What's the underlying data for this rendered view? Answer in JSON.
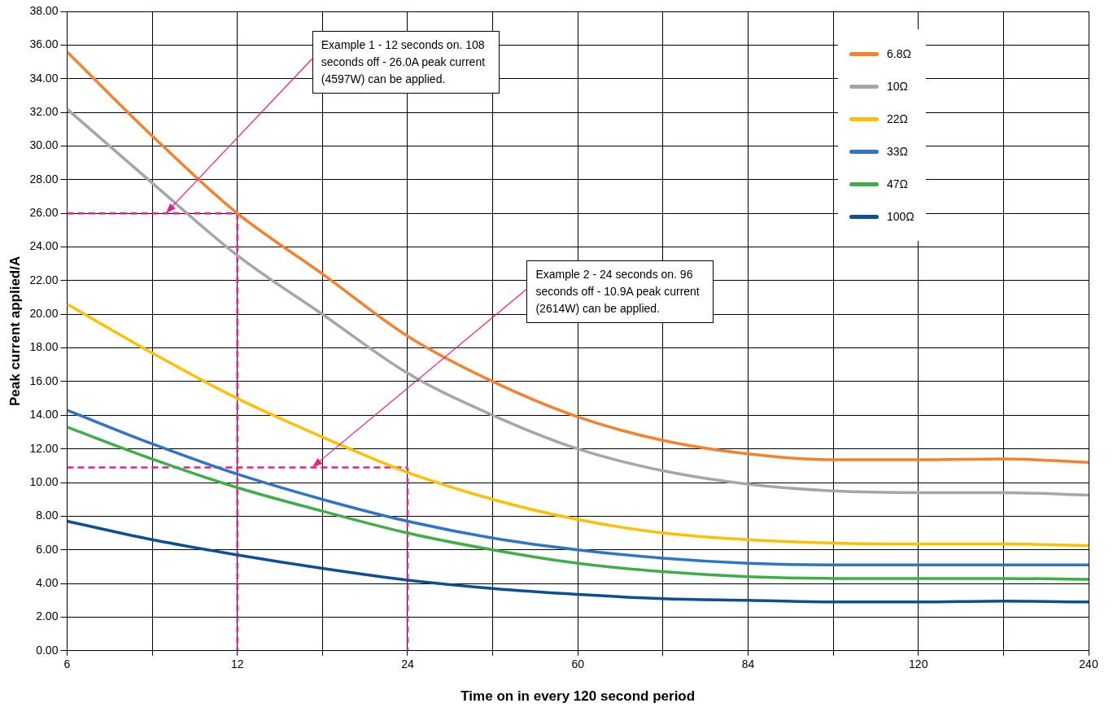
{
  "chart_data": {
    "type": "line",
    "xlabel": "Time on in every 120 second period",
    "ylabel": "Peak current applied/A",
    "categories": [
      "6",
      null,
      "12",
      null,
      "24",
      null,
      "60",
      null,
      "84",
      null,
      "120",
      null,
      "240"
    ],
    "series": [
      {
        "name": "6.8Ω",
        "color": "#f5822a",
        "values": [
          35.6,
          30.6,
          26.0,
          22.4,
          18.7,
          16.0,
          13.9,
          12.5,
          11.7,
          11.35,
          11.35,
          11.4,
          11.2
        ]
      },
      {
        "name": "10Ω",
        "color": "#a6a6a6",
        "values": [
          32.2,
          27.8,
          23.5,
          20.0,
          16.5,
          14.0,
          12.0,
          10.7,
          9.9,
          9.5,
          9.4,
          9.4,
          9.25
        ]
      },
      {
        "name": "22Ω",
        "color": "#ffc000",
        "values": [
          20.6,
          17.7,
          15.0,
          12.7,
          10.6,
          9.0,
          7.8,
          7.0,
          6.6,
          6.4,
          6.35,
          6.35,
          6.25
        ]
      },
      {
        "name": "33Ω",
        "color": "#2e75c8",
        "values": [
          14.3,
          12.3,
          10.5,
          9.0,
          7.7,
          6.7,
          6.0,
          5.5,
          5.2,
          5.1,
          5.1,
          5.1,
          5.1
        ]
      },
      {
        "name": "47Ω",
        "color": "#3fae49",
        "values": [
          13.3,
          11.4,
          9.7,
          8.3,
          7.0,
          6.0,
          5.2,
          4.7,
          4.4,
          4.3,
          4.3,
          4.3,
          4.25
        ]
      },
      {
        "name": "100Ω",
        "color": "#0b4f94",
        "values": [
          7.7,
          6.6,
          5.7,
          4.9,
          4.2,
          3.7,
          3.35,
          3.1,
          3.0,
          2.9,
          2.9,
          2.95,
          2.9
        ]
      },
      {
        "color": "#ec1c8c",
        "line_style": "dashed",
        "x": [
          "6",
          "12"
        ],
        "values": [
          26,
          26
        ]
      },
      {
        "color": "#ec1c8c",
        "line_style": "dashed",
        "x": [
          "12",
          "12"
        ],
        "values": [
          26,
          0
        ]
      },
      {
        "color": "#ec1c8c",
        "line_style": "dashed",
        "x": [
          "6",
          "24"
        ],
        "values": [
          10.9,
          10.9
        ]
      },
      {
        "color": "#ec1c8c",
        "line_style": "dashed",
        "x": [
          "24",
          "24"
        ],
        "values": [
          10.9,
          0
        ]
      }
    ],
    "ylim": [
      0,
      38
    ],
    "yticks": [
      {
        "value": 0,
        "label": "0.00"
      },
      {
        "value": 2,
        "label": "2.00"
      },
      {
        "value": 4,
        "label": "4.00"
      },
      {
        "value": 6,
        "label": "6.00"
      },
      {
        "value": 8,
        "label": "8.00"
      },
      {
        "value": 10,
        "label": "10.00"
      },
      {
        "value": 12,
        "label": "12.00"
      },
      {
        "value": 14,
        "label": "14.00"
      },
      {
        "value": 16,
        "label": "16.00"
      },
      {
        "value": 18,
        "label": "18.00"
      },
      {
        "value": 20,
        "label": "20.00"
      },
      {
        "value": 22,
        "label": "22.00"
      },
      {
        "value": 24,
        "label": "24.00"
      },
      {
        "value": 26,
        "label": "26.00"
      },
      {
        "value": 28,
        "label": "28.00"
      },
      {
        "value": 30,
        "label": "30.00"
      },
      {
        "value": 32,
        "label": "32.00"
      },
      {
        "value": 34,
        "label": "34.00"
      },
      {
        "value": 36,
        "label": "36.00"
      },
      {
        "value": 38,
        "label": "38.00"
      }
    ],
    "annotations": [
      "Example 1 - 12 seconds on. 108 seconds off - 26.0A peak current (4597W) can be applied.",
      "Example 2 - 24 seconds on. 96 seconds off - 10.9A peak current (2614W) can be applied."
    ],
    "grid": true,
    "legend": "top right",
    "marker": "none",
    "line_style": "solid"
  }
}
